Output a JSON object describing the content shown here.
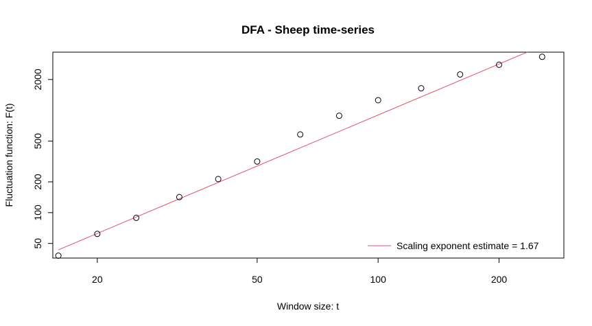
{
  "chart_data": {
    "type": "scatter",
    "title": "DFA - Sheep time-series",
    "xlabel": "Window size: t",
    "ylabel": "Fluctuation function: F(t)",
    "x_scale": "log",
    "y_scale": "log",
    "xlim": [
      15.5,
      290
    ],
    "ylim": [
      36,
      3700
    ],
    "x_ticks": [
      20,
      50,
      100,
      200
    ],
    "y_ticks": [
      50,
      100,
      200,
      500,
      2000
    ],
    "grid": false,
    "points": [
      {
        "x": 16,
        "y": 38
      },
      {
        "x": 20,
        "y": 62
      },
      {
        "x": 25,
        "y": 89
      },
      {
        "x": 32,
        "y": 142
      },
      {
        "x": 40,
        "y": 213
      },
      {
        "x": 50,
        "y": 316
      },
      {
        "x": 64,
        "y": 581
      },
      {
        "x": 80,
        "y": 885
      },
      {
        "x": 100,
        "y": 1256
      },
      {
        "x": 128,
        "y": 1641
      },
      {
        "x": 160,
        "y": 2242
      },
      {
        "x": 200,
        "y": 2786
      },
      {
        "x": 256,
        "y": 3331
      }
    ],
    "fit_line": {
      "x_start": 16,
      "y_start": 43.3,
      "x_end": 235,
      "y_end": 3700,
      "color": "#DF536B",
      "slope": 1.67
    },
    "point_color": "#000000",
    "legend": {
      "position": "bottom-right",
      "entries": [
        {
          "label": "Scaling exponent estimate = 1.67",
          "color": "#DF536B"
        }
      ]
    }
  }
}
